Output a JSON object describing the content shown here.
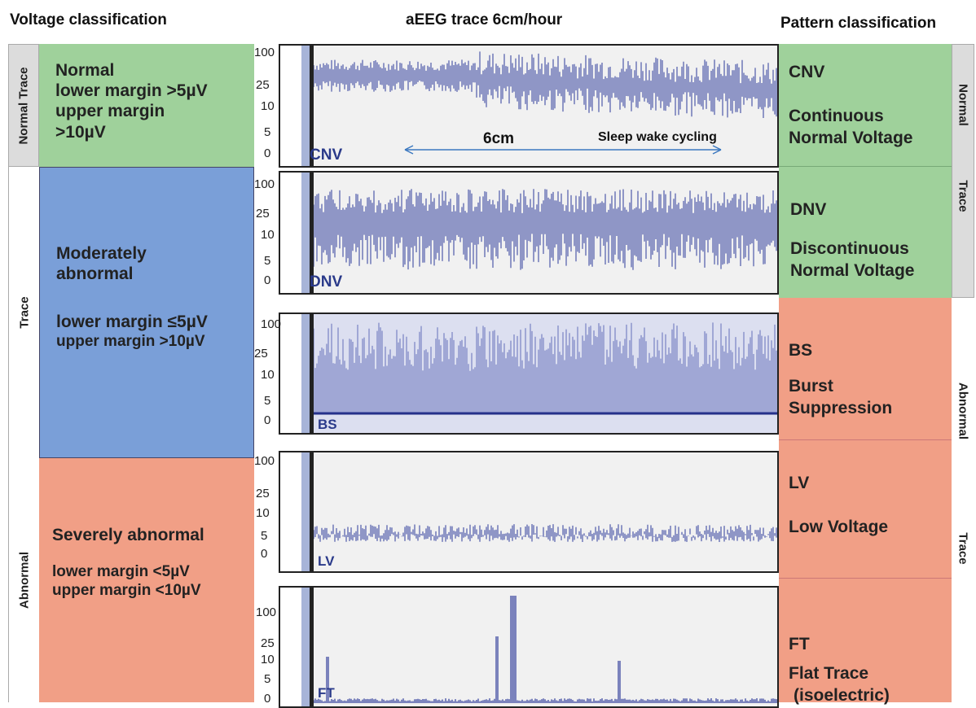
{
  "headers": {
    "voltage": "Voltage classification",
    "trace": "aEEG trace 6cm/hour",
    "pattern": "Pattern classification"
  },
  "left_side_labels": {
    "normal": "Normal Trace",
    "trace": "Trace",
    "abnormal": "Abnormal"
  },
  "right_side_labels": {
    "normal": "Normal",
    "trace1": "Trace",
    "abnormal": "Abnormal",
    "trace2": "Trace"
  },
  "voltage_classes": {
    "normal": {
      "title": "Normal",
      "lower": "lower margin >5µV",
      "upper": "upper margin",
      "upper2": ">10µV"
    },
    "moderate": {
      "title": "Moderately",
      "title2": "abnormal",
      "lower": "lower margin ≤5µV",
      "upper": "upper margin >10µV"
    },
    "severe": {
      "title": "Severely abnormal",
      "lower": "lower margin <5µV",
      "upper": "upper margin <10µV"
    }
  },
  "patterns": [
    {
      "code": "CNV",
      "name": "Continuous",
      "name2": "Normal Voltage"
    },
    {
      "code": "DNV",
      "name": "Discontinuous",
      "name2": "Normal Voltage"
    },
    {
      "code": "BS",
      "name": "Burst",
      "name2": "Suppression"
    },
    {
      "code": "LV",
      "name": "Low Voltage",
      "name2": ""
    },
    {
      "code": "FT",
      "name": "Flat Trace",
      "name2": "(isoelectric)"
    }
  ],
  "y_ticks": [
    "100",
    "25",
    "10",
    "5",
    "0"
  ],
  "annotations": {
    "scale": "6cm",
    "cycling": "Sleep wake cycling"
  },
  "colors": {
    "normal": "#9fd19b",
    "moderate": "#7a9fd8",
    "abnormal": "#f19f86",
    "trace": "#2d3a9a"
  }
}
